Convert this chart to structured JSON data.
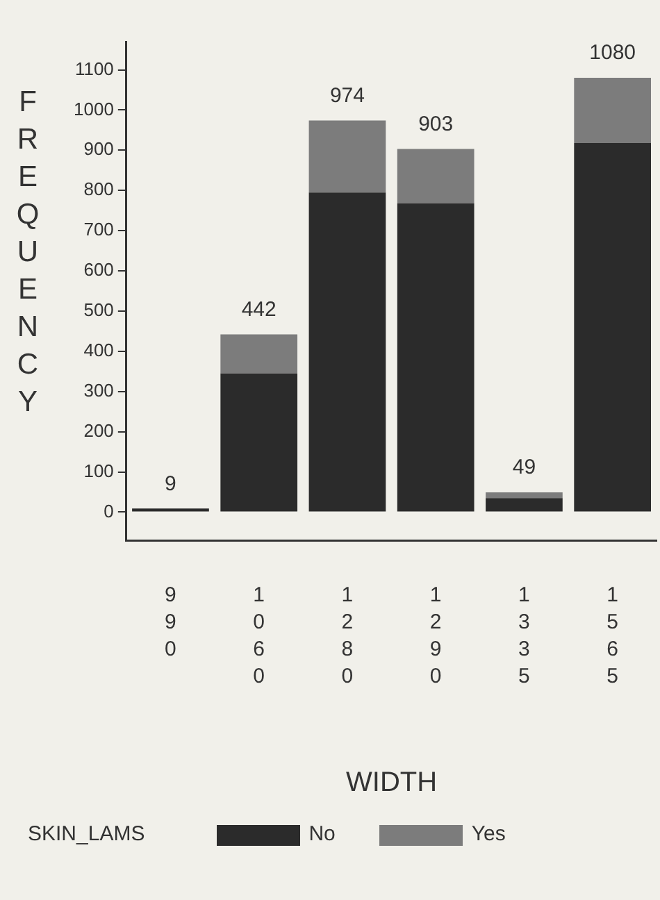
{
  "chart_data": {
    "type": "bar",
    "xlabel": "WIDTH",
    "ylabel": "FREQUENCY",
    "legend_title": "SKIN_LAMS",
    "categories": [
      "990",
      "1060",
      "1280",
      "1290",
      "1335",
      "1565"
    ],
    "series": [
      {
        "name": "No",
        "color": "#2b2b2b",
        "values": [
          9,
          345,
          795,
          768,
          35,
          918
        ]
      },
      {
        "name": "Yes",
        "color": "#7c7c7c",
        "values": [
          0,
          97,
          179,
          135,
          14,
          162
        ]
      }
    ],
    "stacked": true,
    "totals": [
      "9",
      "442",
      "974",
      "903",
      "49",
      "1080"
    ],
    "ylim": [
      -70,
      1170
    ],
    "yticks": [
      0,
      100,
      200,
      300,
      400,
      500,
      600,
      700,
      800,
      900,
      1000,
      1100
    ],
    "grid": false,
    "legend": "bottom"
  }
}
